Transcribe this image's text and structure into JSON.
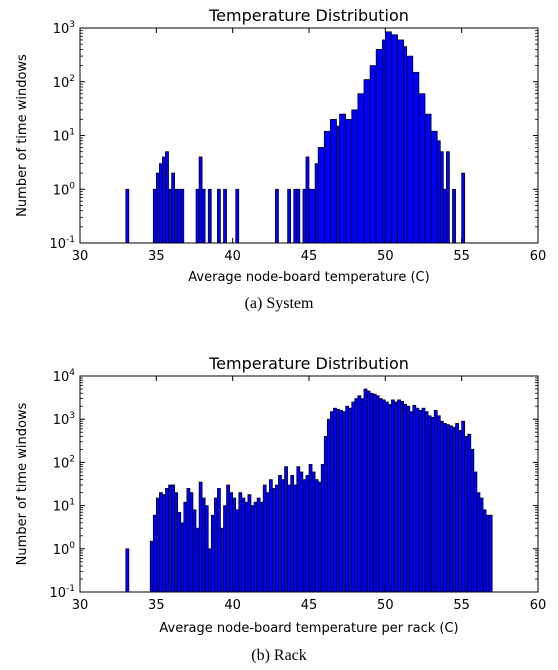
{
  "chart_data": [
    {
      "type": "bar",
      "title": "Temperature Distribution",
      "xlabel": "Average node-board temperature (C)",
      "ylabel": "Number of time windows",
      "caption": "(a) System",
      "xlim": [
        30,
        60
      ],
      "ylim": [
        0.1,
        1000
      ],
      "yscale": "log",
      "xticks": [
        "30",
        "35",
        "40",
        "45",
        "50",
        "55",
        "60"
      ],
      "yticks": [
        {
          "base": "10",
          "exp": "-1"
        },
        {
          "base": "10",
          "exp": "0"
        },
        {
          "base": "10",
          "exp": "1"
        },
        {
          "base": "10",
          "exp": "2"
        },
        {
          "base": "10",
          "exp": "3"
        }
      ],
      "bar_color": "#0000ff",
      "bins": [
        [
          33.0,
          33.2,
          1
        ],
        [
          34.8,
          35.0,
          1
        ],
        [
          35.0,
          35.2,
          2
        ],
        [
          35.2,
          35.4,
          3
        ],
        [
          35.4,
          35.6,
          4
        ],
        [
          35.6,
          35.8,
          5
        ],
        [
          35.8,
          36.0,
          1
        ],
        [
          36.0,
          36.2,
          2
        ],
        [
          36.2,
          36.4,
          1
        ],
        [
          36.4,
          36.6,
          1
        ],
        [
          36.6,
          36.8,
          1
        ],
        [
          37.6,
          37.8,
          1
        ],
        [
          37.8,
          38.0,
          4
        ],
        [
          38.0,
          38.2,
          1
        ],
        [
          38.4,
          38.6,
          1
        ],
        [
          39.0,
          39.2,
          1
        ],
        [
          39.4,
          39.6,
          1
        ],
        [
          40.2,
          40.4,
          1
        ],
        [
          42.8,
          43.0,
          1
        ],
        [
          43.6,
          43.8,
          1
        ],
        [
          44.0,
          44.2,
          1
        ],
        [
          44.2,
          44.4,
          1
        ],
        [
          44.6,
          44.8,
          1
        ],
        [
          44.8,
          45.0,
          4
        ],
        [
          45.0,
          45.4,
          1
        ],
        [
          45.4,
          45.6,
          3
        ],
        [
          45.6,
          46.0,
          6
        ],
        [
          46.0,
          46.4,
          12
        ],
        [
          46.4,
          46.8,
          20
        ],
        [
          46.8,
          47.0,
          15
        ],
        [
          47.0,
          47.4,
          25
        ],
        [
          47.4,
          47.8,
          20
        ],
        [
          47.8,
          48.2,
          30
        ],
        [
          48.2,
          48.6,
          60
        ],
        [
          48.6,
          49.0,
          110
        ],
        [
          49.0,
          49.4,
          200
        ],
        [
          49.4,
          49.8,
          400
        ],
        [
          49.8,
          50.0,
          600
        ],
        [
          50.0,
          50.4,
          850
        ],
        [
          50.4,
          50.8,
          750
        ],
        [
          50.8,
          51.2,
          600
        ],
        [
          51.2,
          51.4,
          450
        ],
        [
          51.4,
          51.8,
          300
        ],
        [
          51.8,
          52.2,
          150
        ],
        [
          52.2,
          52.6,
          60
        ],
        [
          52.6,
          53.0,
          25
        ],
        [
          53.0,
          53.4,
          12
        ],
        [
          53.4,
          53.6,
          8
        ],
        [
          53.6,
          53.8,
          5
        ],
        [
          53.8,
          54.0,
          1
        ],
        [
          54.0,
          54.2,
          5
        ],
        [
          54.4,
          54.6,
          1
        ],
        [
          55.0,
          55.2,
          2
        ]
      ]
    },
    {
      "type": "bar",
      "title": "Temperature Distribution",
      "xlabel": "Average node-board temperature per rack (C)",
      "ylabel": "Number of time windows",
      "caption": "(b) Rack",
      "xlim": [
        30,
        60
      ],
      "ylim": [
        0.1,
        10000
      ],
      "yscale": "log",
      "xticks": [
        "30",
        "35",
        "40",
        "45",
        "50",
        "55",
        "60"
      ],
      "yticks": [
        {
          "base": "10",
          "exp": "-1"
        },
        {
          "base": "10",
          "exp": "0"
        },
        {
          "base": "10",
          "exp": "1"
        },
        {
          "base": "10",
          "exp": "2"
        },
        {
          "base": "10",
          "exp": "3"
        },
        {
          "base": "10",
          "exp": "4"
        }
      ],
      "bar_color": "#0000ff",
      "bins": [
        [
          33.0,
          33.2,
          1
        ],
        [
          34.6,
          34.8,
          1.5
        ],
        [
          34.8,
          35.0,
          6
        ],
        [
          35.0,
          35.2,
          15
        ],
        [
          35.2,
          35.4,
          20
        ],
        [
          35.4,
          35.6,
          18
        ],
        [
          35.6,
          35.8,
          25
        ],
        [
          35.8,
          36.0,
          30
        ],
        [
          36.0,
          36.2,
          30
        ],
        [
          36.2,
          36.4,
          20
        ],
        [
          36.4,
          36.6,
          7
        ],
        [
          36.6,
          36.8,
          4
        ],
        [
          36.8,
          37.0,
          12
        ],
        [
          37.0,
          37.2,
          25
        ],
        [
          37.2,
          37.4,
          20
        ],
        [
          37.4,
          37.6,
          8
        ],
        [
          37.6,
          37.8,
          3
        ],
        [
          37.8,
          38.0,
          35
        ],
        [
          38.0,
          38.2,
          15
        ],
        [
          38.2,
          38.4,
          10
        ],
        [
          38.4,
          38.6,
          1
        ],
        [
          38.6,
          38.8,
          6
        ],
        [
          38.8,
          39.0,
          15
        ],
        [
          39.0,
          39.2,
          25
        ],
        [
          39.2,
          39.4,
          3
        ],
        [
          39.4,
          39.6,
          10
        ],
        [
          39.6,
          39.8,
          30
        ],
        [
          39.8,
          40.0,
          20
        ],
        [
          40.0,
          40.2,
          15
        ],
        [
          40.2,
          40.4,
          8
        ],
        [
          40.4,
          40.6,
          20
        ],
        [
          40.6,
          40.8,
          15
        ],
        [
          40.8,
          41.0,
          12
        ],
        [
          41.0,
          41.2,
          18
        ],
        [
          41.2,
          41.4,
          10
        ],
        [
          41.4,
          41.6,
          12
        ],
        [
          41.6,
          41.8,
          15
        ],
        [
          41.8,
          42.0,
          12
        ],
        [
          42.0,
          42.2,
          30
        ],
        [
          42.2,
          42.4,
          20
        ],
        [
          42.4,
          42.6,
          40
        ],
        [
          42.6,
          42.8,
          25
        ],
        [
          42.8,
          43.0,
          30
        ],
        [
          43.0,
          43.2,
          50
        ],
        [
          43.2,
          43.4,
          40
        ],
        [
          43.4,
          43.6,
          80
        ],
        [
          43.6,
          43.8,
          30
        ],
        [
          43.8,
          44.0,
          50
        ],
        [
          44.0,
          44.2,
          30
        ],
        [
          44.2,
          44.4,
          80
        ],
        [
          44.4,
          44.6,
          60
        ],
        [
          44.6,
          44.8,
          40
        ],
        [
          44.8,
          45.0,
          50
        ],
        [
          45.0,
          45.2,
          90
        ],
        [
          45.2,
          45.4,
          60
        ],
        [
          45.4,
          45.6,
          40
        ],
        [
          45.6,
          45.8,
          35
        ],
        [
          45.8,
          46.0,
          90
        ],
        [
          46.0,
          46.2,
          400
        ],
        [
          46.2,
          46.4,
          1000
        ],
        [
          46.4,
          46.6,
          1500
        ],
        [
          46.6,
          46.8,
          1800
        ],
        [
          46.8,
          47.0,
          1700
        ],
        [
          47.0,
          47.2,
          1600
        ],
        [
          47.2,
          47.4,
          1500
        ],
        [
          47.4,
          47.6,
          2000
        ],
        [
          47.6,
          47.8,
          1800
        ],
        [
          47.8,
          48.0,
          2500
        ],
        [
          48.0,
          48.2,
          3000
        ],
        [
          48.2,
          48.4,
          3500
        ],
        [
          48.4,
          48.6,
          3000
        ],
        [
          48.6,
          48.8,
          5000
        ],
        [
          48.8,
          49.0,
          4500
        ],
        [
          49.0,
          49.2,
          4000
        ],
        [
          49.2,
          49.4,
          3800
        ],
        [
          49.4,
          49.6,
          3500
        ],
        [
          49.6,
          49.8,
          3000
        ],
        [
          49.8,
          50.0,
          2800
        ],
        [
          50.0,
          50.2,
          2500
        ],
        [
          50.2,
          50.4,
          2200
        ],
        [
          50.4,
          50.6,
          2800
        ],
        [
          50.6,
          50.8,
          2500
        ],
        [
          50.8,
          51.0,
          2800
        ],
        [
          51.0,
          51.2,
          2600
        ],
        [
          51.2,
          51.4,
          2200
        ],
        [
          51.4,
          51.6,
          2000
        ],
        [
          51.6,
          51.8,
          1500
        ],
        [
          51.8,
          52.0,
          2100
        ],
        [
          52.0,
          52.2,
          1800
        ],
        [
          52.2,
          52.4,
          1600
        ],
        [
          52.4,
          52.6,
          1800
        ],
        [
          52.6,
          52.8,
          1500
        ],
        [
          52.8,
          53.0,
          1200
        ],
        [
          53.0,
          53.2,
          1100
        ],
        [
          53.2,
          53.4,
          1600
        ],
        [
          53.4,
          53.6,
          1200
        ],
        [
          53.6,
          53.8,
          900
        ],
        [
          53.8,
          54.0,
          800
        ],
        [
          54.0,
          54.2,
          750
        ],
        [
          54.2,
          54.4,
          700
        ],
        [
          54.4,
          54.6,
          650
        ],
        [
          54.6,
          54.8,
          800
        ],
        [
          54.8,
          55.0,
          550
        ],
        [
          55.0,
          55.2,
          900
        ],
        [
          55.2,
          55.4,
          400
        ],
        [
          55.4,
          55.6,
          450
        ],
        [
          55.6,
          55.8,
          200
        ],
        [
          55.8,
          56.0,
          60
        ],
        [
          56.0,
          56.2,
          20
        ],
        [
          56.2,
          56.4,
          15
        ],
        [
          56.4,
          56.6,
          8
        ],
        [
          56.6,
          56.8,
          6
        ],
        [
          56.8,
          57.0,
          6
        ]
      ]
    }
  ]
}
